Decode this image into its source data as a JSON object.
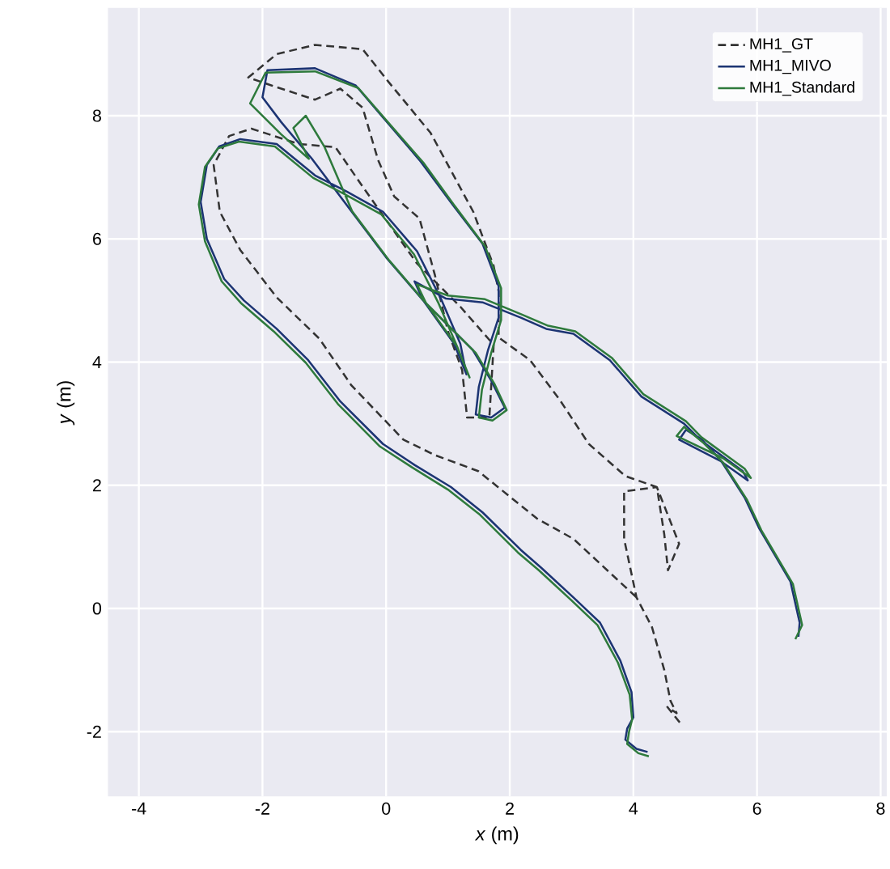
{
  "chart_data": {
    "type": "line",
    "xlabel": "*x* (m)",
    "ylabel": "*y* (m)",
    "xlim": [
      -4.5,
      8.1
    ],
    "ylim": [
      -3.05,
      9.75
    ],
    "xticks": [
      -4,
      -2,
      0,
      2,
      4,
      6,
      8
    ],
    "yticks": [
      -2,
      0,
      2,
      4,
      6,
      8
    ],
    "grid": true,
    "legend": "top right",
    "series": [
      {
        "name": "MH1_GT",
        "color": "#333333",
        "line_style": "dashed",
        "x": [
          4.75,
          4.55,
          4.7,
          4.6,
          4.5,
          4.3,
          4.05,
          3.85,
          3.85,
          4.38,
          4.74,
          4.56,
          4.5,
          4.38,
          3.87,
          3.28,
          2.8,
          2.33,
          1.82,
          1.82,
          1.74,
          1.41,
          0.72,
          0.03,
          -0.38,
          -1.15,
          -1.77,
          -2.23,
          -1.85,
          -1.15,
          -0.74,
          -0.38,
          -0.13,
          0.13,
          0.54,
          0.79,
          1.0,
          1.23,
          1.31,
          1.67,
          1.74,
          1.2,
          0.5,
          -0.38,
          -0.82,
          -1.41,
          -2.18,
          -2.54,
          -2.79,
          -2.69,
          -2.36,
          -1.77,
          -1.08,
          -0.56,
          0.28,
          0.79,
          1.49,
          2.44,
          3.03,
          4.05
        ],
        "values": [
          -1.85,
          -1.6,
          -1.7,
          -1.5,
          -1.0,
          -0.3,
          0.18,
          1.13,
          1.9,
          1.97,
          1.05,
          0.62,
          1.2,
          1.97,
          2.15,
          2.67,
          3.4,
          4.03,
          4.4,
          5.15,
          5.56,
          6.44,
          7.72,
          8.56,
          9.08,
          9.15,
          9.0,
          8.62,
          8.49,
          8.26,
          8.44,
          8.13,
          7.28,
          6.69,
          6.33,
          5.41,
          4.5,
          3.87,
          3.1,
          3.1,
          4.28,
          4.9,
          5.6,
          6.85,
          7.49,
          7.54,
          7.79,
          7.67,
          7.2,
          6.44,
          5.82,
          5.05,
          4.38,
          3.62,
          2.74,
          2.49,
          2.23,
          1.46,
          1.13,
          0.18
        ]
      },
      {
        "name": "MH1_MIVO",
        "color": "#1c3473",
        "line_style": "solid",
        "x": [
          4.23,
          4.05,
          3.87,
          3.9,
          4.0,
          3.97,
          3.79,
          3.46,
          3.03,
          2.51,
          2.18,
          1.56,
          1.05,
          0.46,
          -0.05,
          -0.74,
          -1.26,
          -1.77,
          -2.3,
          -2.62,
          -2.9,
          -3.0,
          -2.9,
          -2.7,
          -2.36,
          -1.77,
          -1.15,
          -0.64,
          -0.05,
          0.5,
          0.9,
          1.2,
          1.3,
          1.1,
          0.6,
          0.0,
          -0.6,
          -1.2,
          -1.7,
          -2.0,
          -1.92,
          -1.15,
          -0.49,
          -0.05,
          0.54,
          1.05,
          1.56,
          1.82,
          1.82,
          1.65,
          1.5,
          1.45,
          1.7,
          1.92,
          1.7,
          1.4,
          1.0,
          0.6,
          0.46,
          0.97,
          1.56,
          2.18,
          2.59,
          3.03,
          3.62,
          4.13,
          4.82,
          5.08,
          5.77,
          5.85,
          5.4,
          4.74,
          4.85,
          5.1,
          5.41,
          5.8,
          6.03,
          6.54,
          6.69,
          6.67
        ],
        "values": [
          -2.33,
          -2.28,
          -2.13,
          -1.95,
          -1.77,
          -1.36,
          -0.85,
          -0.23,
          0.18,
          0.66,
          0.95,
          1.56,
          1.97,
          2.33,
          2.67,
          3.36,
          4.03,
          4.54,
          5.0,
          5.35,
          6.0,
          6.6,
          7.2,
          7.5,
          7.62,
          7.54,
          7.03,
          6.77,
          6.44,
          5.8,
          5.0,
          4.3,
          3.8,
          4.3,
          5.0,
          5.7,
          6.5,
          7.3,
          7.9,
          8.3,
          8.74,
          8.77,
          8.49,
          7.97,
          7.28,
          6.59,
          5.92,
          5.23,
          4.72,
          4.2,
          3.6,
          3.15,
          3.1,
          3.26,
          3.7,
          4.2,
          4.6,
          5.0,
          5.31,
          5.03,
          4.97,
          4.72,
          4.54,
          4.46,
          4.03,
          3.44,
          3.0,
          2.74,
          2.23,
          2.08,
          2.4,
          2.74,
          2.9,
          2.75,
          2.41,
          1.8,
          1.31,
          0.44,
          -0.23,
          -0.46
        ]
      },
      {
        "name": "MH1_Standard",
        "color": "#2e7a3c",
        "line_style": "solid",
        "x": [
          4.25,
          4.08,
          3.9,
          3.93,
          3.98,
          3.94,
          3.75,
          3.42,
          2.99,
          2.47,
          2.13,
          1.52,
          1.0,
          0.42,
          -0.1,
          -0.78,
          -1.3,
          -1.82,
          -2.35,
          -2.66,
          -2.93,
          -3.03,
          -2.93,
          -2.72,
          -2.38,
          -1.8,
          -1.18,
          -0.68,
          -0.08,
          0.45,
          0.85,
          1.15,
          1.35,
          1.15,
          0.65,
          0.05,
          -0.55,
          -1.0,
          -1.3,
          -1.5,
          -1.25,
          -1.7,
          -2.2,
          -1.95,
          -1.15,
          -0.45,
          0.0,
          0.6,
          1.1,
          1.6,
          1.86,
          1.86,
          1.7,
          1.55,
          1.5,
          1.72,
          1.95,
          1.75,
          1.45,
          1.05,
          0.65,
          0.5,
          1.0,
          1.6,
          2.2,
          2.62,
          3.06,
          3.65,
          4.16,
          4.85,
          5.1,
          5.8,
          5.9,
          5.45,
          4.7,
          4.82,
          5.12,
          5.45,
          5.84,
          6.07,
          6.58,
          6.73,
          6.62
        ],
        "values": [
          -2.4,
          -2.35,
          -2.2,
          -2.0,
          -1.8,
          -1.4,
          -0.88,
          -0.27,
          0.14,
          0.62,
          0.91,
          1.52,
          1.93,
          2.29,
          2.63,
          3.32,
          3.99,
          4.5,
          4.96,
          5.31,
          5.96,
          6.56,
          7.17,
          7.47,
          7.58,
          7.5,
          6.99,
          6.73,
          6.4,
          5.75,
          4.95,
          4.25,
          3.75,
          4.25,
          4.95,
          5.65,
          6.45,
          7.5,
          8.0,
          7.8,
          7.3,
          7.7,
          8.2,
          8.7,
          8.72,
          8.45,
          7.93,
          7.24,
          6.55,
          5.88,
          5.2,
          4.68,
          4.15,
          3.55,
          3.1,
          3.05,
          3.22,
          3.65,
          4.15,
          4.55,
          4.95,
          5.26,
          5.08,
          5.02,
          4.77,
          4.59,
          4.5,
          4.07,
          3.48,
          3.04,
          2.78,
          2.27,
          2.12,
          2.44,
          2.8,
          2.95,
          2.7,
          2.37,
          1.76,
          1.27,
          0.4,
          -0.27,
          -0.5
        ]
      }
    ]
  }
}
